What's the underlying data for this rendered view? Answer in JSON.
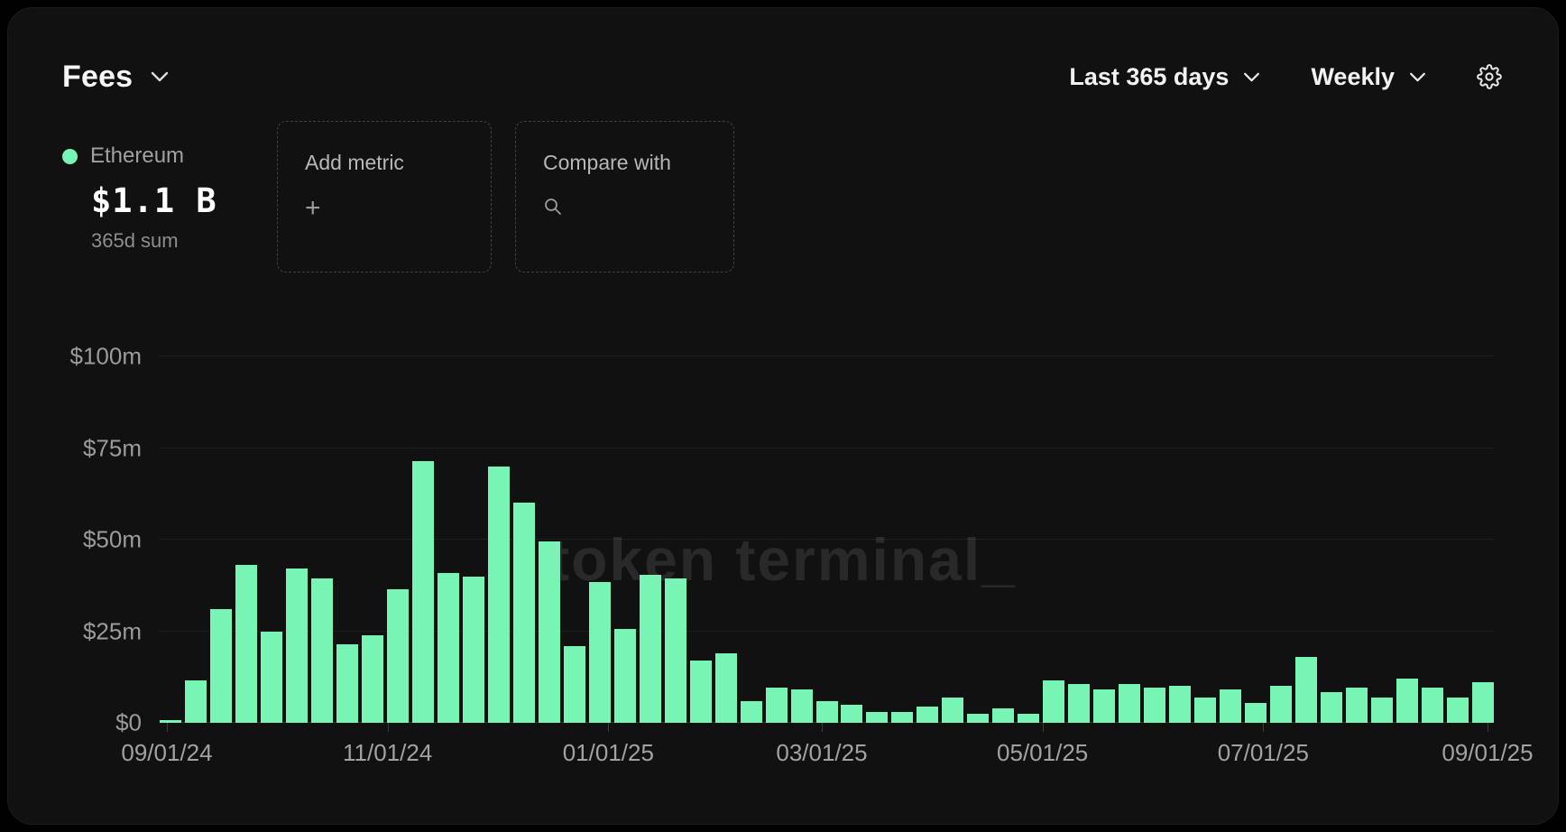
{
  "header": {
    "title": "Fees",
    "range_label": "Last 365 days",
    "granularity_label": "Weekly"
  },
  "legend": {
    "series_name": "Ethereum",
    "value": "$1.1 B",
    "sublabel": "365d sum",
    "dot_color": "#78f5b4"
  },
  "actions": {
    "add_metric_label": "Add metric",
    "add_metric_icon": "+",
    "compare_label": "Compare with"
  },
  "watermark": "token terminal_",
  "colors": {
    "bar": "#78f5b4",
    "card_background": "#111111",
    "page_background": "#010101",
    "axis_text": "#9b9b9b"
  },
  "chart_data": {
    "type": "bar",
    "title": "Ethereum fees, weekly, last 365 days",
    "unit": "USD millions",
    "ylim": [
      0,
      100
    ],
    "grid": true,
    "y_ticks": [
      "$0",
      "$25m",
      "$50m",
      "$75m",
      "$100m"
    ],
    "y_tick_values": [
      0,
      25,
      50,
      75,
      100
    ],
    "x_ticks": [
      "09/01/24",
      "11/01/24",
      "01/01/25",
      "03/01/25",
      "05/01/25",
      "07/01/25",
      "09/01/25"
    ],
    "x_tick_day_offsets": [
      0,
      61,
      122,
      181,
      242,
      303,
      365
    ],
    "days_span": 365,
    "values": [
      0.7,
      11.5,
      31,
      43,
      25,
      42,
      39.5,
      21.5,
      24,
      36.5,
      71.5,
      41,
      40,
      70,
      60,
      49.5,
      21,
      38.5,
      25.5,
      40.5,
      39.5,
      17,
      19,
      6,
      9.5,
      9,
      6,
      5,
      3,
      3,
      4.5,
      7,
      2.5,
      4,
      2.5,
      11.5,
      10.5,
      9,
      10.5,
      9.5,
      10,
      7,
      9,
      5.5,
      10,
      18,
      8.5,
      9.5,
      7,
      12,
      9.5,
      7,
      11
    ]
  }
}
